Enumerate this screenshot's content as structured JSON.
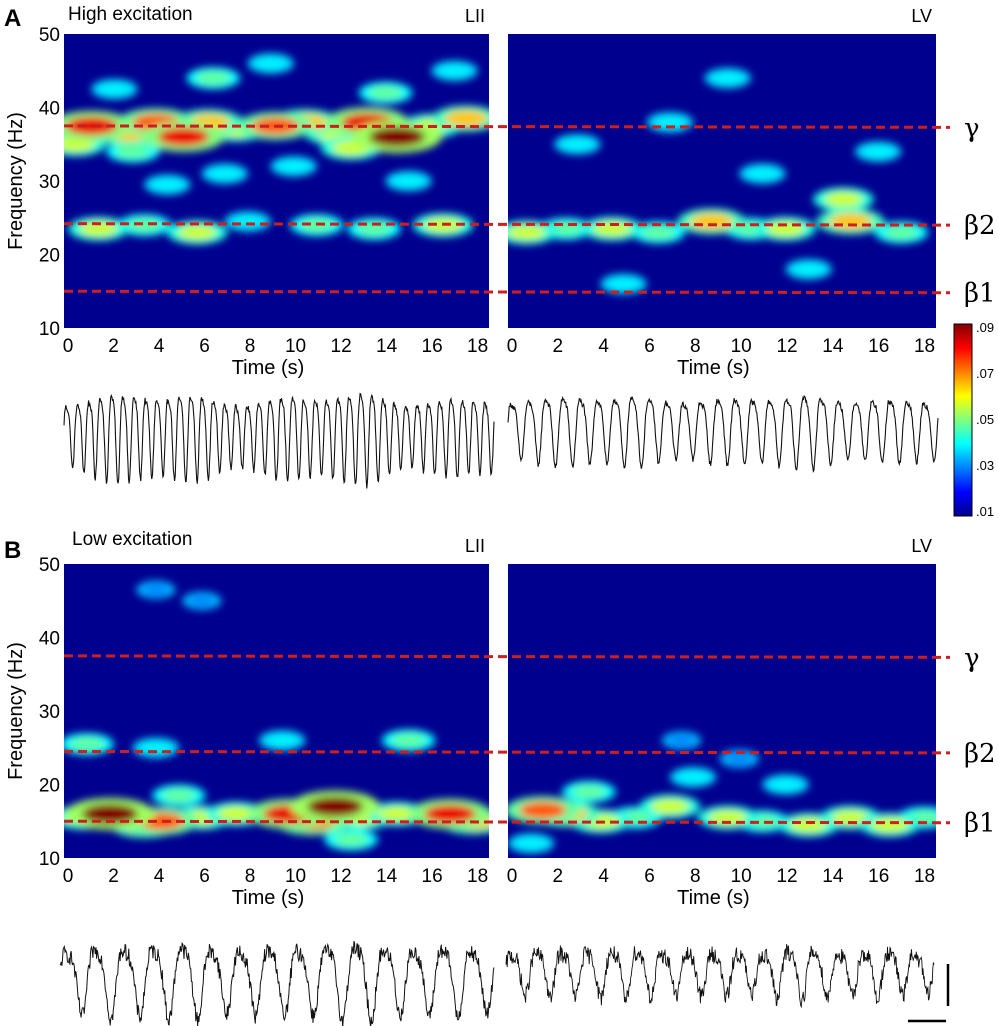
{
  "chart_data": {
    "type": "heatmap",
    "panels": [
      {
        "letter": "A",
        "condition": "High excitation",
        "ylabel": "Frequency (Hz)",
        "yticks": [
          "10",
          "20",
          "30",
          "40",
          "50"
        ],
        "ylim": [
          10,
          50
        ],
        "subplots": [
          {
            "layer": "LII",
            "xlabel": "Time (s)",
            "xticks": [
              "0",
              "2",
              "4",
              "6",
              "8",
              "10",
              "12",
              "14",
              "16",
              "18"
            ],
            "xlim": [
              0,
              18.5
            ],
            "hotspots": [
              {
                "t": 1.2,
                "f": 37.5,
                "v": 0.08
              },
              {
                "t": 2.8,
                "f": 36.5,
                "v": 0.06
              },
              {
                "t": 4.0,
                "f": 38.0,
                "v": 0.07
              },
              {
                "t": 5.2,
                "f": 36.0,
                "v": 0.08
              },
              {
                "t": 6.3,
                "f": 38.0,
                "v": 0.06
              },
              {
                "t": 7.5,
                "f": 37.0,
                "v": 0.05
              },
              {
                "t": 9.2,
                "f": 37.5,
                "v": 0.07
              },
              {
                "t": 10.5,
                "f": 38.0,
                "v": 0.06
              },
              {
                "t": 11.8,
                "f": 36.5,
                "v": 0.05
              },
              {
                "t": 13.2,
                "f": 38.0,
                "v": 0.08
              },
              {
                "t": 14.5,
                "f": 36.0,
                "v": 0.09
              },
              {
                "t": 16.0,
                "f": 37.5,
                "v": 0.05
              },
              {
                "t": 17.5,
                "f": 38.5,
                "v": 0.06
              },
              {
                "t": 0.5,
                "f": 35.0,
                "v": 0.05
              },
              {
                "t": 3.0,
                "f": 34.0,
                "v": 0.04
              },
              {
                "t": 12.5,
                "f": 34.5,
                "v": 0.05
              },
              {
                "t": 1.5,
                "f": 23.5,
                "v": 0.05
              },
              {
                "t": 3.5,
                "f": 24.0,
                "v": 0.04
              },
              {
                "t": 5.8,
                "f": 23.0,
                "v": 0.05
              },
              {
                "t": 8.0,
                "f": 24.5,
                "v": 0.03
              },
              {
                "t": 11.0,
                "f": 24.0,
                "v": 0.04
              },
              {
                "t": 13.5,
                "f": 23.5,
                "v": 0.04
              },
              {
                "t": 16.5,
                "f": 24.0,
                "v": 0.05
              },
              {
                "t": 2.2,
                "f": 42.5,
                "v": 0.03
              },
              {
                "t": 6.5,
                "f": 44.0,
                "v": 0.04
              },
              {
                "t": 9.0,
                "f": 46.0,
                "v": 0.03
              },
              {
                "t": 14.0,
                "f": 42.0,
                "v": 0.04
              },
              {
                "t": 17.0,
                "f": 45.0,
                "v": 0.03
              },
              {
                "t": 4.5,
                "f": 29.5,
                "v": 0.03
              },
              {
                "t": 7.0,
                "f": 31.0,
                "v": 0.03
              },
              {
                "t": 15.0,
                "f": 30.0,
                "v": 0.03
              },
              {
                "t": 10.0,
                "f": 32.0,
                "v": 0.03
              }
            ]
          },
          {
            "layer": "LV",
            "xlabel": "Time (s)",
            "xticks": [
              "0",
              "2",
              "4",
              "6",
              "8",
              "10",
              "12",
              "14",
              "16",
              "18"
            ],
            "xlim": [
              0,
              18.5
            ],
            "hotspots": [
              {
                "t": 0.8,
                "f": 23.0,
                "v": 0.05
              },
              {
                "t": 2.5,
                "f": 23.5,
                "v": 0.04
              },
              {
                "t": 4.5,
                "f": 23.5,
                "v": 0.05
              },
              {
                "t": 6.5,
                "f": 23.0,
                "v": 0.04
              },
              {
                "t": 8.8,
                "f": 24.5,
                "v": 0.06
              },
              {
                "t": 10.5,
                "f": 23.5,
                "v": 0.04
              },
              {
                "t": 12.0,
                "f": 23.5,
                "v": 0.05
              },
              {
                "t": 14.8,
                "f": 24.5,
                "v": 0.06
              },
              {
                "t": 17.0,
                "f": 23.0,
                "v": 0.04
              },
              {
                "t": 14.5,
                "f": 27.5,
                "v": 0.05
              },
              {
                "t": 3.0,
                "f": 35.0,
                "v": 0.03
              },
              {
                "t": 7.0,
                "f": 38.0,
                "v": 0.03
              },
              {
                "t": 11.0,
                "f": 31.0,
                "v": 0.03
              },
              {
                "t": 16.0,
                "f": 34.0,
                "v": 0.03
              },
              {
                "t": 5.0,
                "f": 16.0,
                "v": 0.03
              },
              {
                "t": 13.0,
                "f": 18.0,
                "v": 0.03
              },
              {
                "t": 9.5,
                "f": 44.0,
                "v": 0.03
              }
            ]
          }
        ]
      },
      {
        "letter": "B",
        "condition": "Low excitation",
        "ylabel": "Frequency (Hz)",
        "yticks": [
          "10",
          "20",
          "30",
          "40",
          "50"
        ],
        "ylim": [
          10,
          50
        ],
        "subplots": [
          {
            "layer": "LII",
            "xlabel": "Time (s)",
            "xticks": [
              "0",
              "2",
              "4",
              "6",
              "8",
              "10",
              "12",
              "14",
              "16",
              "18"
            ],
            "xlim": [
              0,
              18.5
            ],
            "hotspots": [
              {
                "t": 2.0,
                "f": 16.0,
                "v": 0.09
              },
              {
                "t": 3.5,
                "f": 14.5,
                "v": 0.06
              },
              {
                "t": 4.2,
                "f": 15.0,
                "v": 0.07
              },
              {
                "t": 0.8,
                "f": 15.5,
                "v": 0.05
              },
              {
                "t": 6.0,
                "f": 15.5,
                "v": 0.05
              },
              {
                "t": 7.5,
                "f": 16.0,
                "v": 0.05
              },
              {
                "t": 9.8,
                "f": 16.0,
                "v": 0.08
              },
              {
                "t": 10.8,
                "f": 15.0,
                "v": 0.07
              },
              {
                "t": 11.8,
                "f": 17.0,
                "v": 0.09
              },
              {
                "t": 13.0,
                "f": 15.5,
                "v": 0.05
              },
              {
                "t": 14.5,
                "f": 16.0,
                "v": 0.05
              },
              {
                "t": 16.8,
                "f": 16.0,
                "v": 0.08
              },
              {
                "t": 17.8,
                "f": 15.0,
                "v": 0.06
              },
              {
                "t": 1.0,
                "f": 25.5,
                "v": 0.04
              },
              {
                "t": 4.0,
                "f": 25.0,
                "v": 0.03
              },
              {
                "t": 9.5,
                "f": 26.0,
                "v": 0.03
              },
              {
                "t": 15.0,
                "f": 26.0,
                "v": 0.04
              },
              {
                "t": 5.0,
                "f": 18.5,
                "v": 0.04
              },
              {
                "t": 12.5,
                "f": 12.5,
                "v": 0.04
              },
              {
                "t": 4.0,
                "f": 46.5,
                "v": 0.02
              },
              {
                "t": 6.0,
                "f": 45.0,
                "v": 0.02
              }
            ]
          },
          {
            "layer": "LV",
            "xlabel": "Time (s)",
            "xticks": [
              "0",
              "2",
              "4",
              "6",
              "8",
              "10",
              "12",
              "14",
              "16",
              "18"
            ],
            "xlim": [
              0,
              18.5
            ],
            "hotspots": [
              {
                "t": 1.5,
                "f": 16.5,
                "v": 0.07
              },
              {
                "t": 2.5,
                "f": 16.0,
                "v": 0.06
              },
              {
                "t": 4.0,
                "f": 15.0,
                "v": 0.05
              },
              {
                "t": 5.5,
                "f": 15.5,
                "v": 0.04
              },
              {
                "t": 7.0,
                "f": 17.0,
                "v": 0.05
              },
              {
                "t": 9.5,
                "f": 15.5,
                "v": 0.05
              },
              {
                "t": 11.0,
                "f": 15.0,
                "v": 0.04
              },
              {
                "t": 13.0,
                "f": 14.5,
                "v": 0.05
              },
              {
                "t": 14.8,
                "f": 15.5,
                "v": 0.05
              },
              {
                "t": 16.5,
                "f": 14.5,
                "v": 0.05
              },
              {
                "t": 18.0,
                "f": 15.5,
                "v": 0.04
              },
              {
                "t": 3.5,
                "f": 19.0,
                "v": 0.04
              },
              {
                "t": 8.0,
                "f": 21.0,
                "v": 0.03
              },
              {
                "t": 12.0,
                "f": 20.0,
                "v": 0.03
              },
              {
                "t": 1.0,
                "f": 12.0,
                "v": 0.03
              },
              {
                "t": 7.5,
                "f": 26.0,
                "v": 0.02
              },
              {
                "t": 10.0,
                "f": 23.5,
                "v": 0.02
              }
            ]
          }
        ]
      }
    ],
    "bands": [
      {
        "label": "γ",
        "freq": [
          37.5,
          37.3
        ]
      },
      {
        "label": "β2",
        "freq": [
          24.2,
          24.0
        ]
      },
      {
        "label": "β1",
        "freq": [
          15.0,
          14.8
        ]
      }
    ],
    "bands_B": [
      {
        "label": "γ",
        "freq": [
          37.5,
          37.3
        ]
      },
      {
        "label": "β2",
        "freq": [
          24.5,
          24.3
        ]
      },
      {
        "label": "β1",
        "freq": [
          15.0,
          14.8
        ]
      }
    ],
    "band_line_color": "#cc1f1f",
    "colorbar": {
      "ticks": [
        ".01",
        ".03",
        ".05",
        ".07",
        ".09"
      ],
      "range": [
        0.01,
        0.09
      ],
      "colormap": "jet"
    },
    "traces": [
      {
        "panel": "A",
        "layer": "LII",
        "cycles": 38,
        "noise": 0.06,
        "amp_var": 0.35
      },
      {
        "panel": "A",
        "layer": "LV",
        "cycles": 25,
        "noise": 0.08,
        "amp_var": 0.25
      },
      {
        "panel": "B",
        "layer": "LII",
        "cycles": 15,
        "noise": 0.22,
        "amp_var": 0.2
      },
      {
        "panel": "B",
        "layer": "LV",
        "cycles": 17,
        "noise": 0.35,
        "amp_var": 0.2
      }
    ]
  }
}
